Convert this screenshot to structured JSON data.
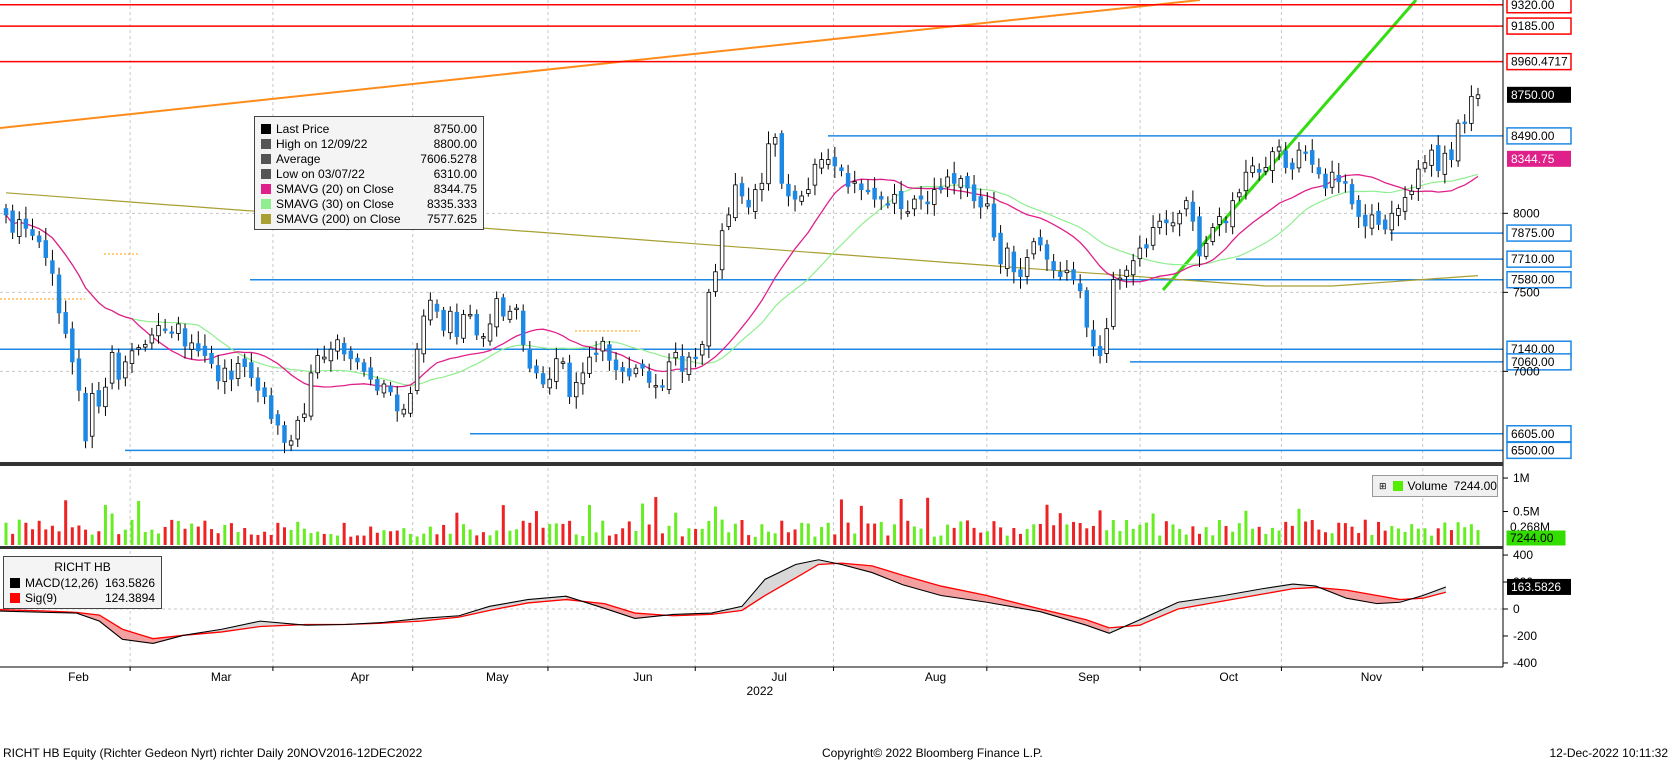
{
  "ticker": "RICHT HB",
  "chart_data": [
    {
      "type": "line",
      "panel": "price",
      "ylabel": "",
      "ylim": [
        6420,
        9350
      ],
      "y_ticks": [
        7000,
        7500,
        8000
      ],
      "x_month_labels": [
        {
          "label": "Feb",
          "t": 0.04
        },
        {
          "label": "Mar",
          "t": 0.135
        },
        {
          "label": "Apr",
          "t": 0.228
        },
        {
          "label": "May",
          "t": 0.318
        },
        {
          "label": "Jun",
          "t": 0.416
        },
        {
          "label": "Jul",
          "t": 0.508
        },
        {
          "label": "Aug",
          "t": 0.61
        },
        {
          "label": "Sep",
          "t": 0.712
        },
        {
          "label": "Oct",
          "t": 0.806
        },
        {
          "label": "Nov",
          "t": 0.9
        }
      ],
      "year_label": "2022",
      "legend": [
        {
          "name": "Last Price",
          "value": "8750.00",
          "color": "#000000"
        },
        {
          "name": "High on 12/09/22",
          "value": "8800.00",
          "color": "#555555"
        },
        {
          "name": "Average",
          "value": "7606.5278",
          "color": "#555555"
        },
        {
          "name": "Low on 03/07/22",
          "value": "6310.00",
          "color": "#555555"
        },
        {
          "name": "SMAVG (20)  on Close",
          "value": "8344.75",
          "color": "#e0208a"
        },
        {
          "name": "SMAVG (30)  on Close",
          "value": "8335.333",
          "color": "#90ee90"
        },
        {
          "name": "SMAVG (200)  on Close",
          "value": "7577.625",
          "color": "#a8a032"
        }
      ],
      "horizontal_levels": [
        {
          "label": "9320.00",
          "value": 9320,
          "color": "#ff0000"
        },
        {
          "label": "9185.00",
          "value": 9185,
          "color": "#ff0000"
        },
        {
          "label": "8960.4717",
          "value": 8960,
          "color": "#ff0000"
        },
        {
          "label": "8490.00",
          "value": 8490,
          "color": "#1e88e5"
        },
        {
          "label": "7875.00",
          "value": 7875,
          "color": "#1e88e5"
        },
        {
          "label": "7710.00",
          "value": 7710,
          "color": "#1e88e5"
        },
        {
          "label": "7580.00",
          "value": 7580,
          "color": "#1e88e5"
        },
        {
          "label": "7140.00",
          "value": 7140,
          "color": "#1e88e5"
        },
        {
          "label": "7060.00",
          "value": 7060,
          "color": "#1e88e5"
        },
        {
          "label": "6605.00",
          "value": 6605,
          "color": "#1e88e5"
        },
        {
          "label": "6500.00",
          "value": 6500,
          "color": "#1e88e5"
        }
      ],
      "right_value_tags": [
        {
          "label": "8750.00",
          "value": 8750,
          "bg": "#000000",
          "fg": "#ffffff"
        },
        {
          "label": "8344.75",
          "value": 8345,
          "bg": "#e0208a",
          "fg": "#ffffff"
        }
      ],
      "close_series": [
        7990,
        7880,
        7960,
        7905,
        7860,
        7820,
        7720,
        7620,
        7370,
        7240,
        7060,
        6880,
        6560,
        6860,
        6780,
        6900,
        7120,
        6950,
        7060,
        7130,
        7150,
        7170,
        7230,
        7290,
        7260,
        7240,
        7300,
        7160,
        7180,
        7130,
        7100,
        7050,
        6940,
        7020,
        6950,
        7050,
        7030,
        6960,
        6880,
        6840,
        6700,
        6660,
        6550,
        6560,
        6690,
        6730,
        6990,
        7100,
        7090,
        7140,
        7200,
        7110,
        7080,
        7060,
        7000,
        6950,
        6880,
        6920,
        6870,
        6750,
        6760,
        6860,
        7140,
        7350,
        7450,
        7380,
        7260,
        7380,
        7220,
        7360,
        7360,
        7230,
        7220,
        7300,
        7460,
        7350,
        7380,
        7400,
        7170,
        7020,
        6990,
        6920,
        6950,
        7080,
        7060,
        6840,
        6930,
        6990,
        7090,
        7110,
        7190,
        7070,
        7010,
        7000,
        6970,
        7020,
        7020,
        6930,
        6910,
        6900,
        7060,
        7120,
        7000,
        7090,
        7080,
        7170,
        7500,
        7630,
        7890,
        7990,
        8180,
        8110,
        8040,
        8150,
        8190,
        8440,
        8480,
        8190,
        8110,
        8090,
        8110,
        8150,
        8310,
        8340,
        8340,
        8300,
        8270,
        8170,
        8200,
        8150,
        8140,
        8090,
        8090,
        8060,
        8120,
        8030,
        8010,
        8090,
        8090,
        8060,
        8150,
        8150,
        8230,
        8190,
        8220,
        8160,
        8080,
        8040,
        8060,
        7850,
        7680,
        7780,
        7630,
        7600,
        7720,
        7820,
        7800,
        7710,
        7640,
        7600,
        7640,
        7580,
        7510,
        7280,
        7160,
        7100,
        7270,
        7580,
        7590,
        7640,
        7700,
        7780,
        7780,
        7910,
        7950,
        7940,
        7940,
        8000,
        8080,
        7950,
        7730,
        7810,
        7910,
        7980,
        7940,
        8080,
        8130,
        8260,
        8300,
        8260,
        8290,
        8390,
        8420,
        8290,
        8280,
        8400,
        8380,
        8310,
        8250,
        8160,
        8260,
        8200,
        8190,
        8060,
        7980,
        7920,
        7990,
        7930,
        7900,
        8000,
        8030,
        8100,
        8140,
        8280,
        8320,
        8400,
        8270,
        8380,
        8340,
        8570,
        8570,
        8740,
        8750
      ]
    },
    {
      "type": "bar",
      "panel": "volume",
      "legend": [
        {
          "name": "Volume",
          "value": "7244.00",
          "color": "#55ee00"
        }
      ],
      "y_ticks": [
        "1M",
        "0.5M"
      ],
      "right_value_tags": [
        {
          "label": "0.268M",
          "bg": "#ffffff",
          "fg": "#000000"
        },
        {
          "label": "7244.00",
          "bg": "#33dd00",
          "fg": "#000000"
        }
      ],
      "ylim": [
        0,
        1150000
      ]
    },
    {
      "type": "line",
      "panel": "macd",
      "title": "RICHT HB",
      "legend": [
        {
          "name": "MACD(12,26)",
          "value": "163.5826",
          "color": "#000000"
        },
        {
          "name": "Sig(9)",
          "value": "124.3894",
          "color": "#ff0000"
        }
      ],
      "ylim": [
        -430,
        430
      ],
      "y_ticks": [
        400,
        200,
        0,
        -200,
        -400
      ],
      "y_tick_labels": [
        "400",
        "200",
        "0",
        "-200",
        "-400"
      ],
      "right_value_tags": [
        {
          "label": "163.5826",
          "bg": "#000000",
          "fg": "#ffffff"
        }
      ],
      "macd_series": [
        {
          "x": 0.0,
          "macd": -15,
          "sig": -5
        },
        {
          "x": 0.03,
          "macd": -25,
          "sig": -15
        },
        {
          "x": 0.05,
          "macd": -30,
          "sig": -25
        },
        {
          "x": 0.065,
          "macd": -90,
          "sig": -45
        },
        {
          "x": 0.08,
          "macd": -225,
          "sig": -150
        },
        {
          "x": 0.1,
          "macd": -255,
          "sig": -220
        },
        {
          "x": 0.12,
          "macd": -195,
          "sig": -195
        },
        {
          "x": 0.145,
          "macd": -150,
          "sig": -170
        },
        {
          "x": 0.17,
          "macd": -90,
          "sig": -130
        },
        {
          "x": 0.2,
          "macd": -120,
          "sig": -115
        },
        {
          "x": 0.225,
          "macd": -115,
          "sig": -115
        },
        {
          "x": 0.25,
          "macd": -100,
          "sig": -105
        },
        {
          "x": 0.275,
          "macd": -70,
          "sig": -90
        },
        {
          "x": 0.3,
          "macd": -50,
          "sig": -60
        },
        {
          "x": 0.32,
          "macd": 20,
          "sig": -10
        },
        {
          "x": 0.345,
          "macd": 70,
          "sig": 45
        },
        {
          "x": 0.37,
          "macd": 95,
          "sig": 70
        },
        {
          "x": 0.395,
          "macd": 5,
          "sig": 40
        },
        {
          "x": 0.415,
          "macd": -70,
          "sig": -30
        },
        {
          "x": 0.44,
          "macd": -40,
          "sig": -50
        },
        {
          "x": 0.465,
          "macd": -30,
          "sig": -40
        },
        {
          "x": 0.485,
          "macd": 20,
          "sig": -10
        },
        {
          "x": 0.5,
          "macd": 220,
          "sig": 100
        },
        {
          "x": 0.52,
          "macd": 330,
          "sig": 230
        },
        {
          "x": 0.535,
          "macd": 365,
          "sig": 330
        },
        {
          "x": 0.55,
          "macd": 330,
          "sig": 340
        },
        {
          "x": 0.57,
          "macd": 270,
          "sig": 320
        },
        {
          "x": 0.59,
          "macd": 180,
          "sig": 250
        },
        {
          "x": 0.615,
          "macd": 100,
          "sig": 170
        },
        {
          "x": 0.645,
          "macd": 50,
          "sig": 100
        },
        {
          "x": 0.68,
          "macd": -20,
          "sig": 0
        },
        {
          "x": 0.71,
          "macd": -120,
          "sig": -80
        },
        {
          "x": 0.725,
          "macd": -180,
          "sig": -140
        },
        {
          "x": 0.745,
          "macd": -80,
          "sig": -120
        },
        {
          "x": 0.77,
          "macd": 50,
          "sig": 0
        },
        {
          "x": 0.8,
          "macd": 100,
          "sig": 60
        },
        {
          "x": 0.825,
          "macd": 150,
          "sig": 110
        },
        {
          "x": 0.845,
          "macd": 185,
          "sig": 150
        },
        {
          "x": 0.86,
          "macd": 170,
          "sig": 160
        },
        {
          "x": 0.88,
          "macd": 80,
          "sig": 140
        },
        {
          "x": 0.9,
          "macd": 40,
          "sig": 100
        },
        {
          "x": 0.915,
          "macd": 50,
          "sig": 70
        },
        {
          "x": 0.93,
          "macd": 100,
          "sig": 80
        },
        {
          "x": 0.945,
          "macd": 163,
          "sig": 124
        }
      ]
    }
  ],
  "footer": {
    "left": "RICHT HB Equity (Richter Gedeon Nyrt) richter  Daily 20NOV2016-12DEC2022",
    "center": "Copyright© 2022 Bloomberg Finance L.P.",
    "right": "12-Dec-2022 10:11:32"
  }
}
